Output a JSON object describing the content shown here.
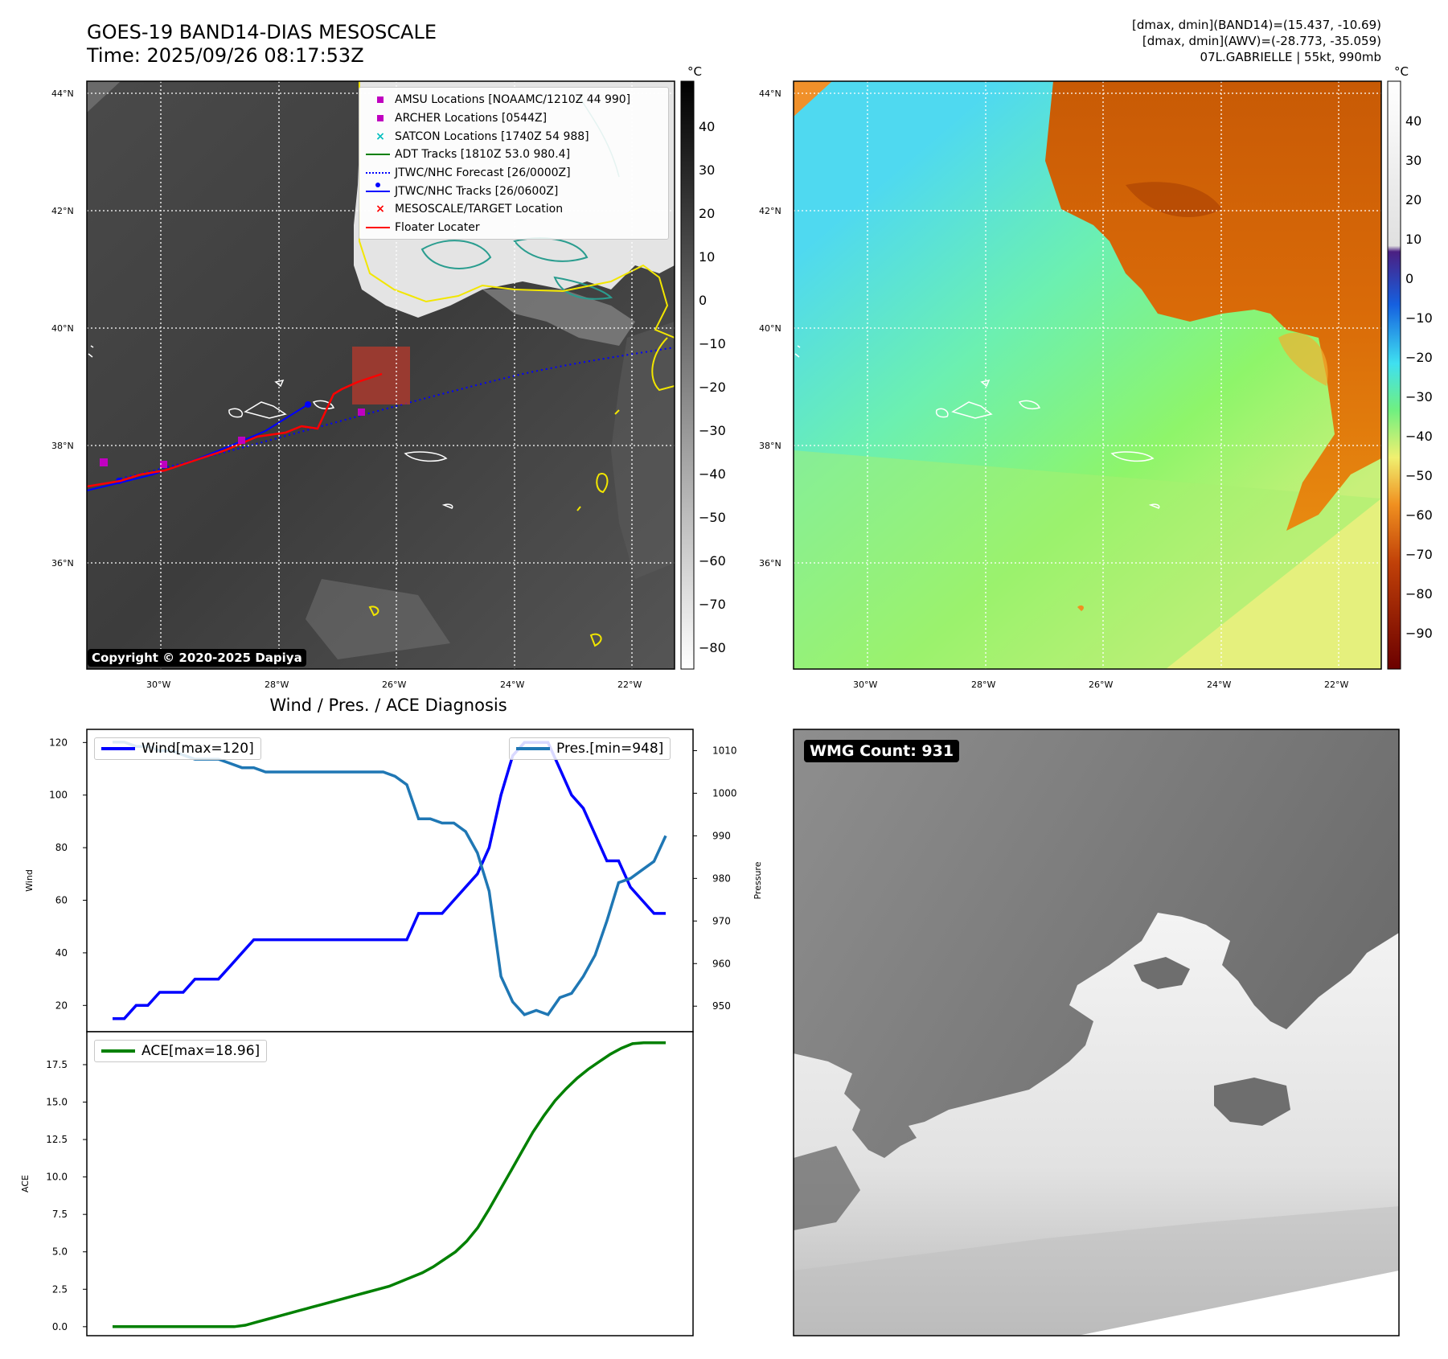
{
  "header": {
    "title_line1": "GOES-19 BAND14-DIAS MESOSCALE",
    "title_line2": "Time: 2025/09/26 08:17:53Z",
    "info_line1": "[dmax, dmin](BAND14)=(15.437, -10.69)",
    "info_line2": "[dmax, dmin](AWV)=(-28.773, -35.059)",
    "info_line3": "07L.GABRIELLE | 55kt, 990mb"
  },
  "map_axes": {
    "lat_labels": [
      "44°N",
      "42°N",
      "40°N",
      "38°N",
      "36°N"
    ],
    "lon_labels": [
      "30°W",
      "28°W",
      "26°W",
      "24°W",
      "22°W"
    ]
  },
  "ir_panel": {
    "copyright": "Copyright © 2020-2025 Dapiya",
    "legend": [
      {
        "label": "AMSU Locations [NOAAMC/1210Z 44 990]",
        "symbol": "square",
        "color": "#c000c0"
      },
      {
        "label": "ARCHER Locations [0544Z]",
        "symbol": "square",
        "color": "#c000c0"
      },
      {
        "label": "SATCON Locations [1740Z 54 988]",
        "symbol": "x",
        "color": "#00bfbf"
      },
      {
        "label": "ADT Tracks [1810Z 53.0 980.4]",
        "symbol": "line",
        "color": "#008000"
      },
      {
        "label": "JTWC/NHC Forecast [26/0000Z]",
        "symbol": "dotted",
        "color": "#0000ff"
      },
      {
        "label": "JTWC/NHC Tracks [26/0600Z]",
        "symbol": "line-dot",
        "color": "#0000ff"
      },
      {
        "label": "MESOSCALE/TARGET Location",
        "symbol": "x",
        "color": "#ff0000"
      },
      {
        "label": "Floater Locater",
        "symbol": "line",
        "color": "#ff0000"
      }
    ]
  },
  "ir_colorbar": {
    "unit": "°C",
    "ticks": [
      "40",
      "30",
      "20",
      "10",
      "0",
      "−10",
      "−20",
      "−30",
      "−40",
      "−50",
      "−60",
      "−70",
      "−80"
    ]
  },
  "wv_colorbar": {
    "unit": "°C",
    "ticks": [
      "40",
      "30",
      "20",
      "10",
      "0",
      "−10",
      "−20",
      "−30",
      "−40",
      "−50",
      "−60",
      "−70",
      "−80",
      "−90"
    ]
  },
  "wmg_panel": {
    "badge": "WMG Count: 931"
  },
  "chart_data": [
    {
      "type": "line",
      "title": "Wind / Pres. / ACE Diagnosis",
      "xlabel": "",
      "ylabel": "Wind",
      "y2label": "Pressure",
      "ylim": [
        10,
        125
      ],
      "y2lim": [
        944,
        1015
      ],
      "yticks": [
        20,
        40,
        60,
        80,
        100,
        120
      ],
      "y2ticks": [
        950,
        960,
        970,
        980,
        990,
        1000,
        1010
      ],
      "series": [
        {
          "name": "Wind[max=120]",
          "axis": "left",
          "color": "#0000ff",
          "values": [
            15,
            15,
            20,
            20,
            25,
            25,
            25,
            30,
            30,
            30,
            35,
            40,
            45,
            45,
            45,
            45,
            45,
            45,
            45,
            45,
            45,
            45,
            45,
            45,
            45,
            45,
            55,
            55,
            55,
            60,
            65,
            70,
            80,
            100,
            115,
            120,
            120,
            120,
            110,
            100,
            95,
            85,
            75,
            75,
            65,
            60,
            55,
            55
          ]
        },
        {
          "name": "Pres.[min=948]",
          "axis": "right",
          "color": "#1f77b4",
          "values": [
            1012,
            1012,
            1011,
            1011,
            1010,
            1010,
            1009,
            1008,
            1008,
            1008,
            1007,
            1006,
            1006,
            1005,
            1005,
            1005,
            1005,
            1005,
            1005,
            1005,
            1005,
            1005,
            1005,
            1005,
            1004,
            1002,
            994,
            994,
            993,
            993,
            991,
            986,
            977,
            957,
            951,
            948,
            949,
            948,
            952,
            953,
            957,
            962,
            970,
            979,
            980,
            982,
            984,
            990
          ]
        }
      ]
    },
    {
      "type": "line",
      "title": "",
      "ylabel": "ACE",
      "ylim": [
        -0.6,
        19.7
      ],
      "yticks": [
        0.0,
        2.5,
        5.0,
        7.5,
        10.0,
        12.5,
        15.0,
        17.5
      ],
      "series": [
        {
          "name": "ACE[max=18.96]",
          "color": "#008000",
          "values": [
            0,
            0,
            0,
            0,
            0,
            0,
            0,
            0,
            0,
            0,
            0,
            0,
            0.1,
            0.3,
            0.5,
            0.7,
            0.9,
            1.1,
            1.3,
            1.5,
            1.7,
            1.9,
            2.1,
            2.3,
            2.5,
            2.7,
            3.0,
            3.3,
            3.6,
            4.0,
            4.5,
            5.0,
            5.7,
            6.6,
            7.8,
            9.1,
            10.4,
            11.7,
            13.0,
            14.1,
            15.1,
            15.9,
            16.6,
            17.2,
            17.7,
            18.2,
            18.6,
            18.9,
            18.96,
            18.96,
            18.96
          ]
        }
      ]
    }
  ]
}
